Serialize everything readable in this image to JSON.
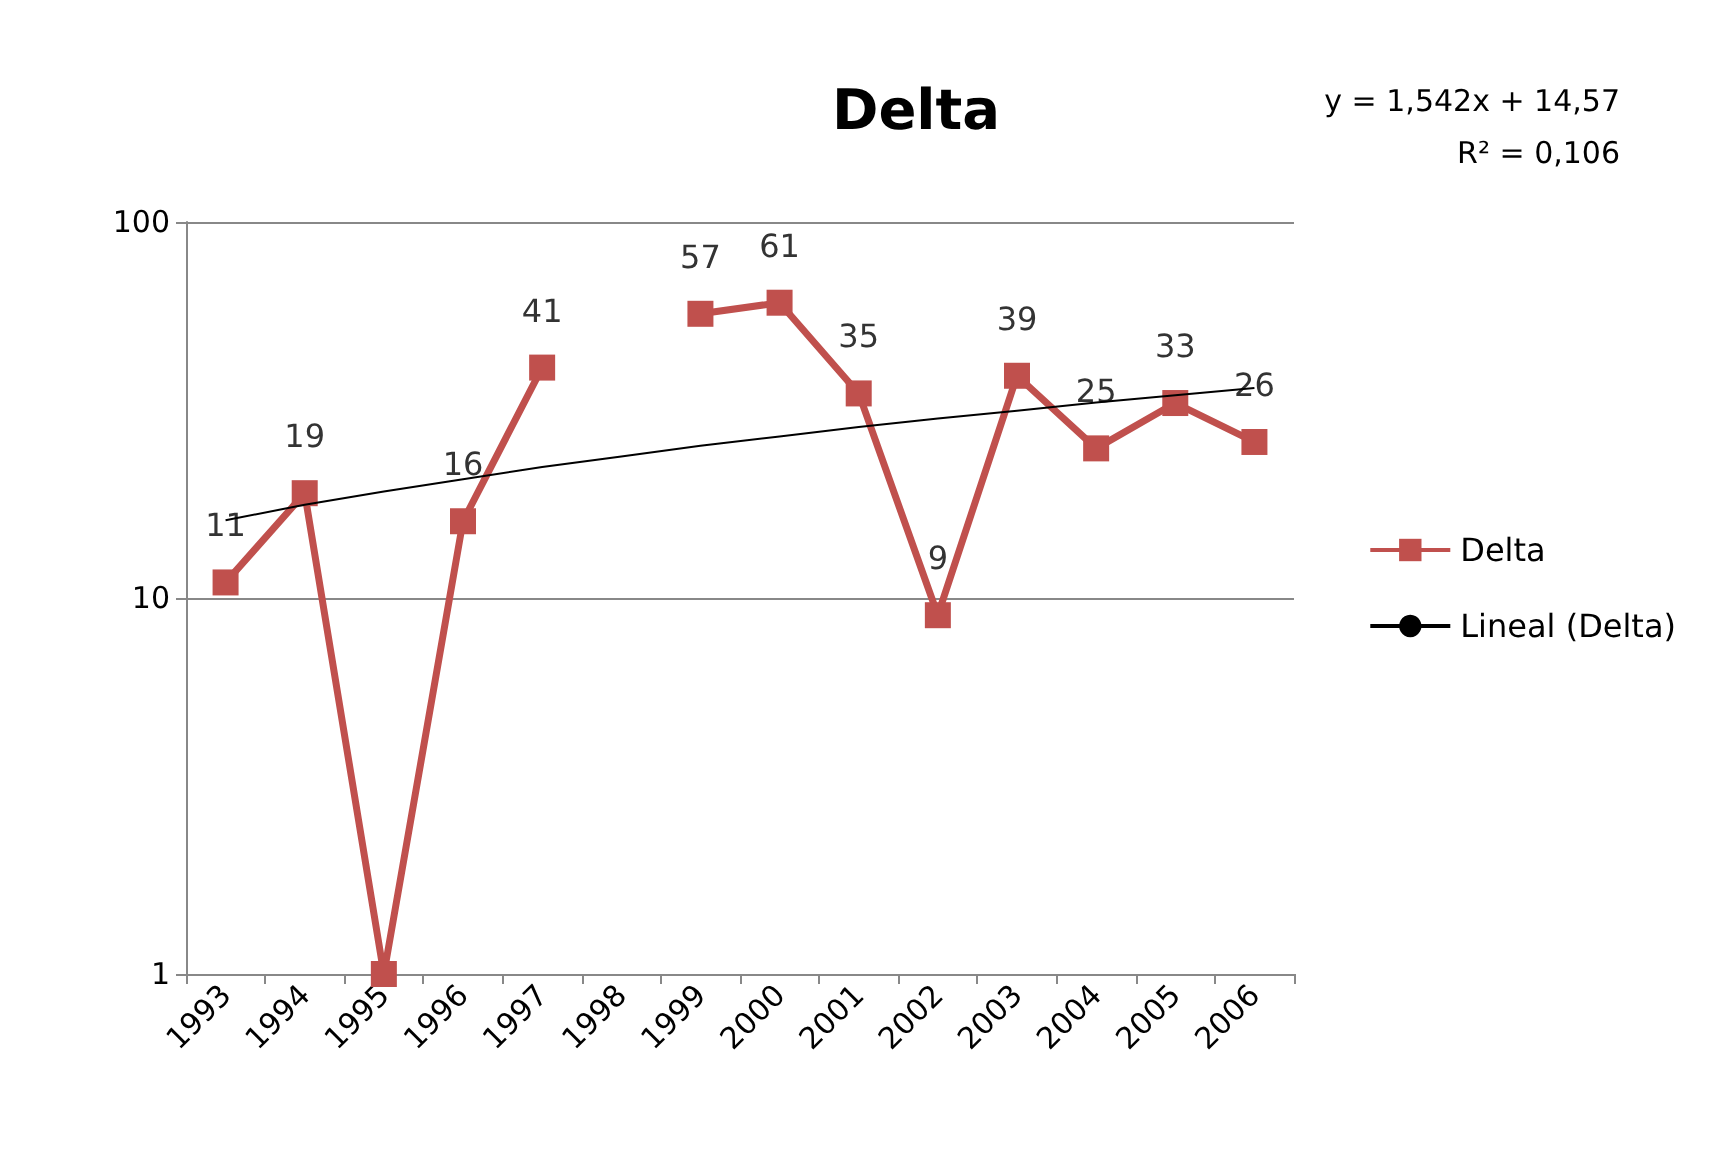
{
  "chart_data": {
    "type": "line",
    "title": "Delta",
    "categories": [
      "1993",
      "1994",
      "1995",
      "1996",
      "1997",
      "1998",
      "1999",
      "2000",
      "2001",
      "2002",
      "2003",
      "2004",
      "2005",
      "2006"
    ],
    "series": [
      {
        "name": "Delta",
        "color": "#c0504d",
        "values": [
          11,
          19,
          1,
          16,
          41,
          null,
          57,
          61,
          35,
          9,
          39,
          25,
          33,
          26
        ],
        "value_labels": [
          "11",
          "19",
          null,
          "16",
          "41",
          null,
          "57",
          "61",
          "35",
          "9",
          "39",
          "25",
          "33",
          "26"
        ],
        "marker": "square"
      },
      {
        "name": "Lineal (Delta)",
        "color": "#000000",
        "values": [
          16.1,
          17.7,
          19.2,
          20.7,
          22.3,
          23.8,
          25.4,
          26.9,
          28.5,
          30.0,
          31.5,
          33.1,
          34.6,
          36.2
        ],
        "marker": "none"
      }
    ],
    "log": "y",
    "ylim": [
      1,
      100
    ],
    "yticks": [
      1,
      10,
      100
    ],
    "grid": "y",
    "legend": "right",
    "line_style": "solid",
    "annotations": [
      "y = 1,542x + 14,57",
      "R² = 0,106"
    ]
  }
}
